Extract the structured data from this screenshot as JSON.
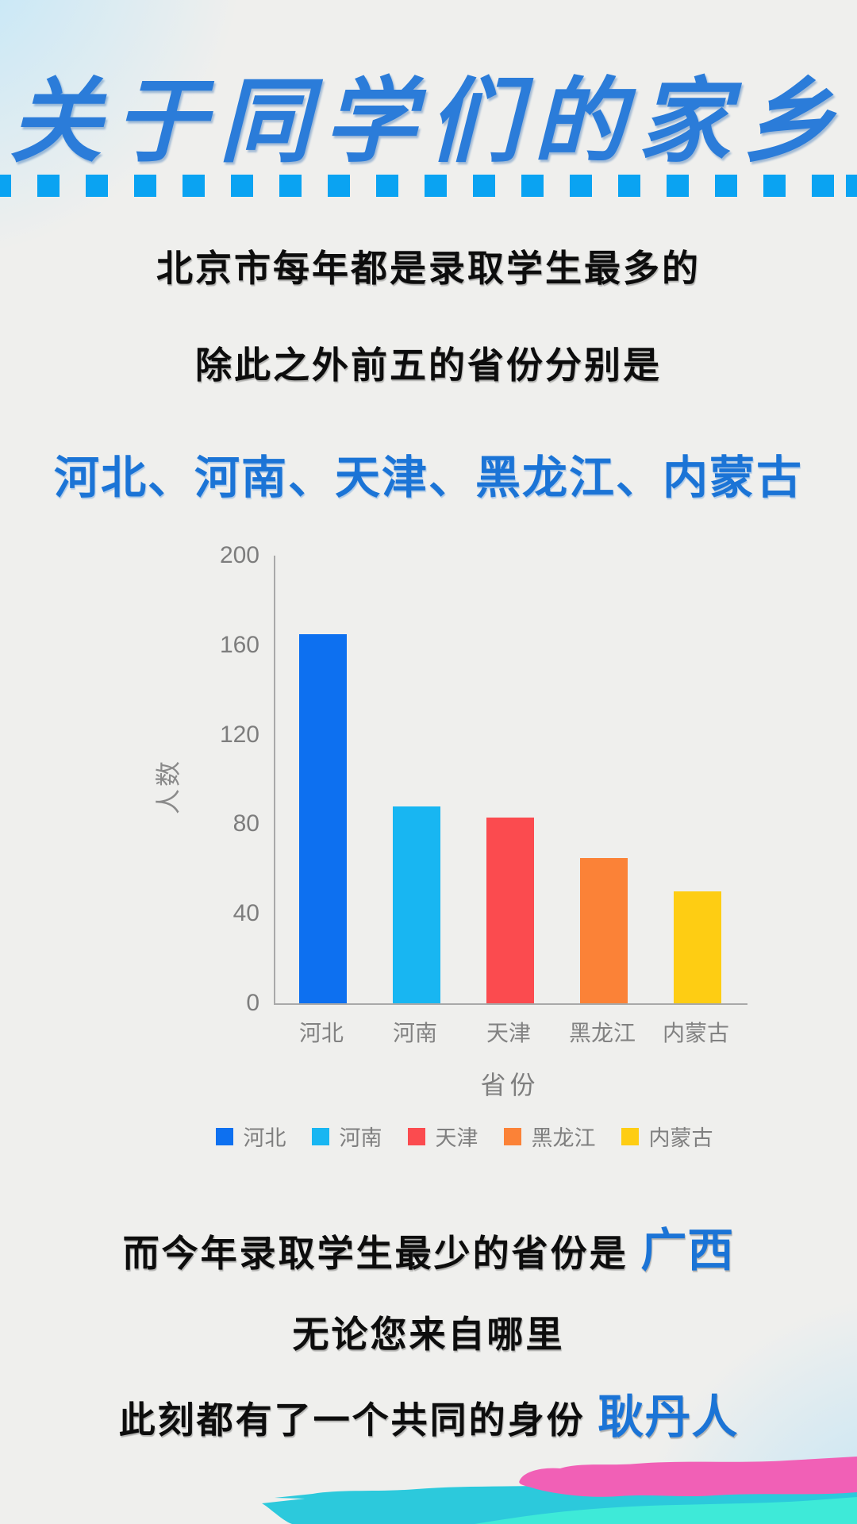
{
  "title": "关于同学们的家乡",
  "intro": {
    "line1": "北京市每年都是录取学生最多的",
    "line2": "除此之外前五的省份分别是",
    "highlight": "河北、河南、天津、黑龙江、内蒙古"
  },
  "chart_data": {
    "type": "bar",
    "categories": [
      "河北",
      "河南",
      "天津",
      "黑龙江",
      "内蒙古"
    ],
    "values": [
      165,
      88,
      83,
      65,
      50
    ],
    "colors": [
      "#0d70f0",
      "#18b6f2",
      "#fb4b4f",
      "#fb8237",
      "#fecd13"
    ],
    "title": "",
    "xlabel": "省份",
    "ylabel": "人数",
    "ylim": [
      0,
      200
    ],
    "yticks": [
      0,
      40,
      80,
      120,
      160,
      200
    ],
    "grid": false,
    "legend": [
      "河北",
      "河南",
      "天津",
      "黑龙江",
      "内蒙古"
    ],
    "legend_position": "bottom"
  },
  "outro": {
    "line1_prefix": "而今年录取学生最少的省份是 ",
    "line1_highlight": "广西",
    "line2": "无论您来自哪里",
    "line3_prefix": "此刻都有了一个共同的身份 ",
    "line3_highlight": "耿丹人"
  },
  "colors": {
    "background": "#efefed",
    "dash_divider": "#0aa3f2",
    "title_blue": "#2b7cd9",
    "highlight_blue": "#1b74d6",
    "axis_gray": "#a9a9a9",
    "tick_gray": "#7d7d7d",
    "brush_cyan": "#2cc9dc",
    "brush_turquoise": "#3eead8",
    "brush_pink": "#f160b6",
    "corner_glow": "#bde6fa"
  }
}
